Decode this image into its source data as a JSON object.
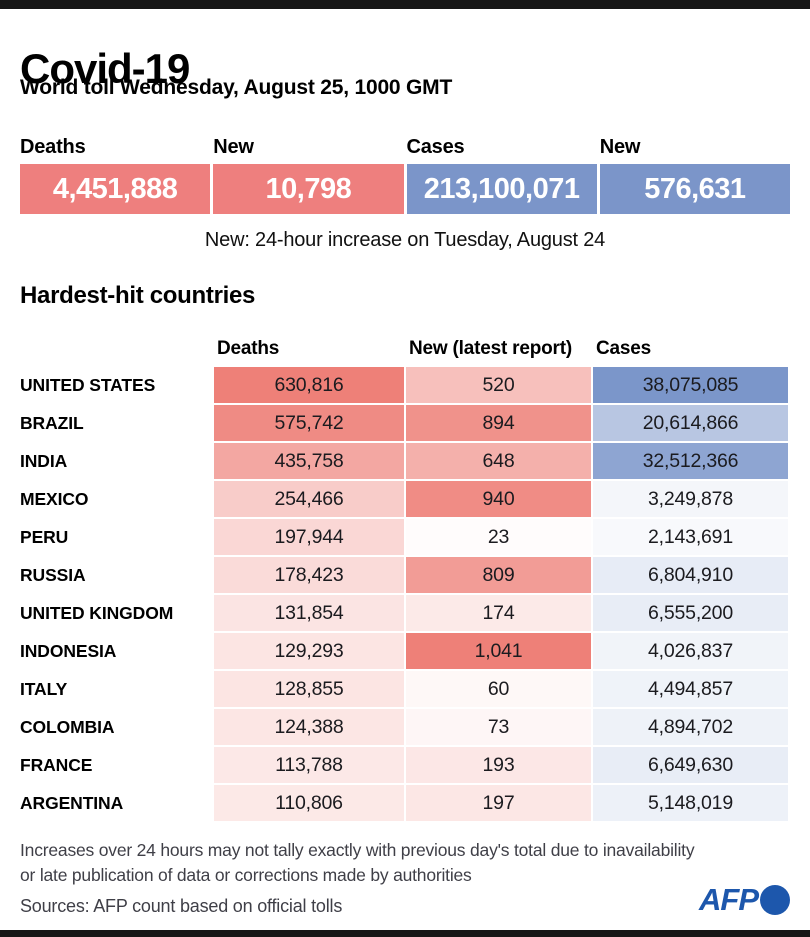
{
  "header": {
    "title": "Covid-19",
    "subtitle": "World toll Wednesday, August 25, 1000 GMT"
  },
  "summary": {
    "boxes": [
      {
        "label": "Deaths",
        "value": "4,451,888",
        "color": "#ee7f7e"
      },
      {
        "label": "New",
        "value": "10,798",
        "color": "#ee7f7e"
      },
      {
        "label": "Cases",
        "value": "213,100,071",
        "color": "#7b95c9"
      },
      {
        "label": "New",
        "value": "576,631",
        "color": "#7b95c9"
      }
    ],
    "note": "New: 24-hour increase on Tuesday, August 24"
  },
  "chart_data": {
    "type": "table",
    "title": "Hardest-hit countries",
    "columns": [
      "Deaths",
      "New (latest report)",
      "Cases"
    ],
    "heat_colors": [
      "#ee8078",
      "#ee8078",
      "#7b96ca"
    ],
    "heat_note": "cell background = white-to-base color scaled by value / column max",
    "rows": [
      {
        "country": "UNITED STATES",
        "values": [
          630816,
          520,
          38075085
        ]
      },
      {
        "country": "BRAZIL",
        "values": [
          575742,
          894,
          20614866
        ]
      },
      {
        "country": "INDIA",
        "values": [
          435758,
          648,
          32512366
        ]
      },
      {
        "country": "MEXICO",
        "values": [
          254466,
          940,
          3249878
        ]
      },
      {
        "country": "PERU",
        "values": [
          197944,
          23,
          2143691
        ]
      },
      {
        "country": "RUSSIA",
        "values": [
          178423,
          809,
          6804910
        ]
      },
      {
        "country": "UNITED KINGDOM",
        "values": [
          131854,
          174,
          6555200
        ]
      },
      {
        "country": "INDONESIA",
        "values": [
          129293,
          1041,
          4026837
        ]
      },
      {
        "country": "ITALY",
        "values": [
          128855,
          60,
          4494857
        ]
      },
      {
        "country": "COLOMBIA",
        "values": [
          124388,
          73,
          4894702
        ]
      },
      {
        "country": "FRANCE",
        "values": [
          113788,
          193,
          6649630
        ]
      },
      {
        "country": "ARGENTINA",
        "values": [
          110806,
          197,
          5148019
        ]
      }
    ]
  },
  "footer": {
    "note_line1": "Increases over 24 hours may not tally exactly with previous day's total due to inavailability",
    "note_line2": "or late publication of data or corrections made by authorities",
    "sources": "Sources: AFP count based on official tolls",
    "logo_text": "AFP",
    "logo_color": "#1d57ac"
  }
}
